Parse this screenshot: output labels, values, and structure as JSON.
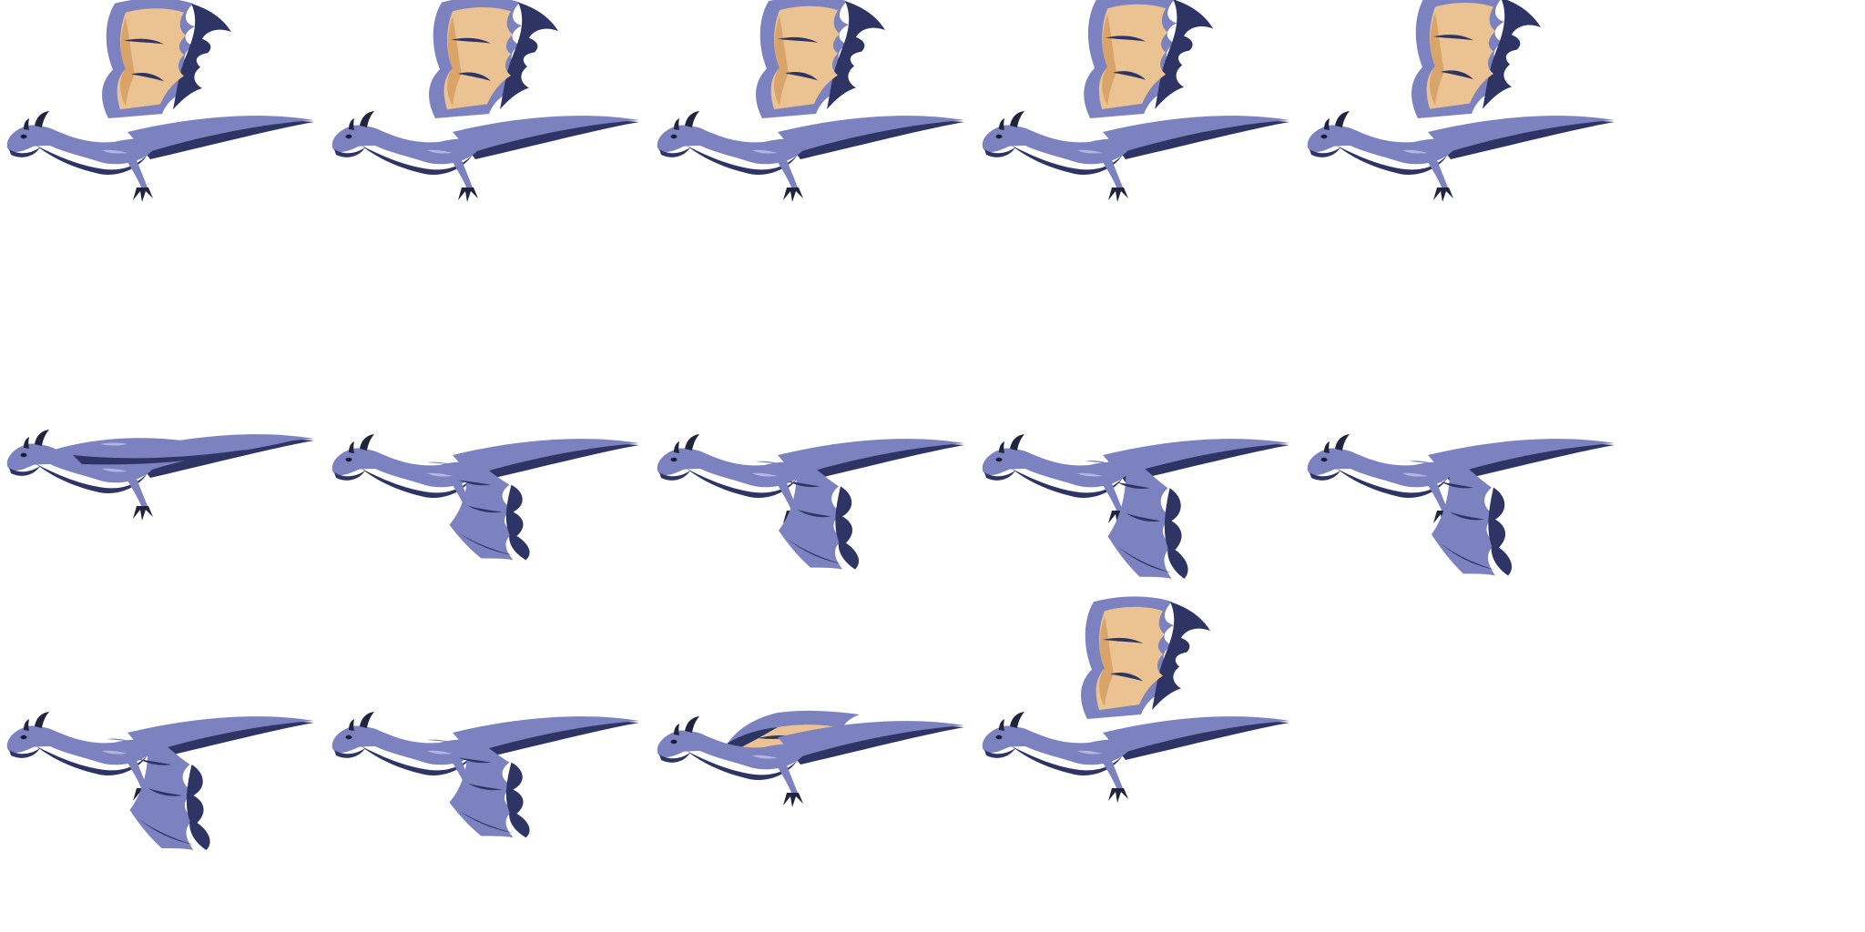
{
  "sprite_sheet": {
    "colors": {
      "background": "#ffffff",
      "body": "#7b82bf",
      "body_shadow": "#2e3564",
      "wing_membrane": "#ebc291",
      "wing_membrane_shadow": "#d9a46a",
      "highlight": "#b2b7e2",
      "horn": "#20243f",
      "eye": "#1a1d33"
    },
    "rows": [
      {
        "pose": "wings-up",
        "frames": [
          {
            "wing": "up",
            "wing_level": 0.6
          },
          {
            "wing": "up",
            "wing_level": 0.65
          },
          {
            "wing": "up",
            "wing_level": 0.7
          },
          {
            "wing": "up",
            "wing_level": 0.78
          },
          {
            "wing": "up",
            "wing_level": 0.85
          }
        ]
      },
      {
        "pose": "wings-down",
        "frames": [
          {
            "wing": "folded",
            "wing_level": 0.0
          },
          {
            "wing": "down",
            "wing_level": 0.55
          },
          {
            "wing": "down",
            "wing_level": 0.7
          },
          {
            "wing": "down",
            "wing_level": 0.85
          },
          {
            "wing": "down",
            "wing_level": 0.8
          }
        ]
      },
      {
        "pose": "mixed",
        "frames": [
          {
            "wing": "down",
            "wing_level": 0.75
          },
          {
            "wing": "down",
            "wing_level": 0.55
          },
          {
            "wing": "half",
            "wing_level": 0.4
          },
          {
            "wing": "up",
            "wing_level": 0.7
          }
        ]
      }
    ]
  }
}
